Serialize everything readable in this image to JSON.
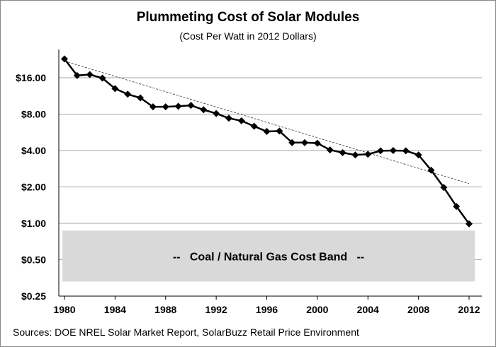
{
  "chart_data": {
    "type": "line",
    "title": "Plummeting Cost of Solar Modules",
    "subtitle": "(Cost Per Watt in 2012 Dollars)",
    "source": "Sources:  DOE NREL Solar Market Report, SolarBuzz Retail Price Environment",
    "y_scale": "log2",
    "ylim": [
      0.25,
      32
    ],
    "y_ticks": [
      0.25,
      0.5,
      1,
      2,
      4,
      8,
      16
    ],
    "y_tick_labels": [
      "$0.25",
      "$0.50",
      "$1.00",
      "$2.00",
      "$4.00",
      "$8.00",
      "$16.00"
    ],
    "xlim": [
      1980,
      2012
    ],
    "x_ticks": [
      1980,
      1984,
      1988,
      1992,
      1996,
      2000,
      2004,
      2008,
      2012
    ],
    "x_tick_labels": [
      "1980",
      "1984",
      "1988",
      "1992",
      "1996",
      "2000",
      "2004",
      "2008",
      "2012"
    ],
    "grid": "horizontal",
    "x": [
      1980,
      1981,
      1982,
      1983,
      1984,
      1985,
      1986,
      1987,
      1988,
      1989,
      1990,
      1991,
      1992,
      1993,
      1994,
      1995,
      1996,
      1997,
      1998,
      1999,
      2000,
      2001,
      2002,
      2003,
      2004,
      2005,
      2006,
      2007,
      2008,
      2009,
      2010,
      2011,
      2012
    ],
    "values": [
      22.9,
      16.7,
      17.0,
      15.9,
      13.0,
      11.7,
      10.9,
      9.2,
      9.2,
      9.3,
      9.45,
      8.7,
      8.1,
      7.4,
      7.05,
      6.35,
      5.75,
      5.8,
      4.65,
      4.65,
      4.6,
      4.05,
      3.84,
      3.68,
      3.73,
      3.98,
      4.0,
      3.98,
      3.68,
      2.75,
      1.98,
      1.38,
      0.99
    ],
    "trendline": {
      "style": "dashed",
      "type": "exponential",
      "start": [
        1980,
        22.0
      ],
      "end": [
        2012,
        2.13
      ]
    },
    "band": {
      "label": "--   Coal / Natural Gas Cost Band   --",
      "low": 0.33,
      "high": 0.87,
      "color": "#d9d9d9"
    },
    "colors": {
      "line": "#000000",
      "grid": "#a6a6a6"
    }
  }
}
